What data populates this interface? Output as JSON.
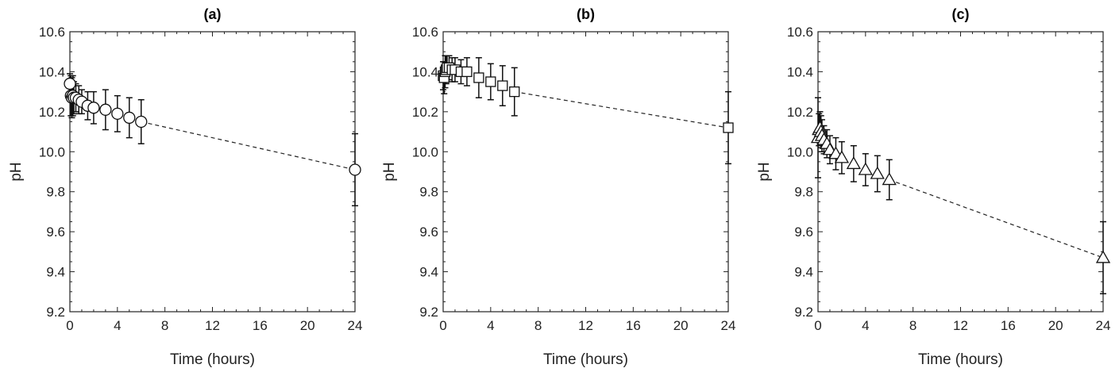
{
  "chart_data": [
    {
      "type": "scatter",
      "title": "(a)",
      "xlabel": "Time (hours)",
      "ylabel": "pH",
      "xlim": [
        0,
        24
      ],
      "ylim": [
        9.2,
        10.6
      ],
      "xticks": [
        "0",
        "4",
        "8",
        "12",
        "16",
        "20",
        "24"
      ],
      "yticks": [
        "9.2",
        "9.4",
        "9.6",
        "9.8",
        "10.0",
        "10.2",
        "10.4",
        "10.6"
      ],
      "marker": "circle",
      "grid": false,
      "x": [
        0,
        0.083,
        0.167,
        0.25,
        0.333,
        0.5,
        0.75,
        1,
        1.5,
        2,
        3,
        4,
        5,
        6,
        24
      ],
      "y": [
        10.34,
        10.28,
        10.27,
        10.28,
        10.27,
        10.27,
        10.26,
        10.25,
        10.23,
        10.22,
        10.21,
        10.19,
        10.17,
        10.15,
        9.91
      ],
      "error": [
        0.05,
        0.1,
        0.1,
        0.1,
        0.08,
        0.07,
        0.07,
        0.06,
        0.07,
        0.08,
        0.1,
        0.09,
        0.1,
        0.11,
        0.18
      ]
    },
    {
      "type": "scatter",
      "title": "(b)",
      "xlabel": "Time (hours)",
      "ylabel": "pH",
      "xlim": [
        0,
        24
      ],
      "ylim": [
        9.2,
        10.6
      ],
      "xticks": [
        "0",
        "4",
        "8",
        "12",
        "16",
        "20",
        "24"
      ],
      "yticks": [
        "9.2",
        "9.4",
        "9.6",
        "9.8",
        "10.0",
        "10.2",
        "10.4",
        "10.6"
      ],
      "marker": "square",
      "grid": false,
      "x": [
        0,
        0.083,
        0.167,
        0.25,
        0.333,
        0.5,
        0.75,
        1,
        1.5,
        2,
        3,
        4,
        5,
        6,
        24
      ],
      "y": [
        10.38,
        10.37,
        10.4,
        10.41,
        10.42,
        10.42,
        10.41,
        10.41,
        10.4,
        10.4,
        10.37,
        10.35,
        10.33,
        10.3,
        10.12
      ],
      "error": [
        0.07,
        0.08,
        0.08,
        0.07,
        0.06,
        0.06,
        0.06,
        0.06,
        0.06,
        0.07,
        0.1,
        0.09,
        0.1,
        0.12,
        0.18
      ]
    },
    {
      "type": "scatter",
      "title": "(c)",
      "xlabel": "Time (hours)",
      "ylabel": "pH",
      "xlim": [
        0,
        24
      ],
      "ylim": [
        9.2,
        10.6
      ],
      "xticks": [
        "0",
        "4",
        "8",
        "12",
        "16",
        "20",
        "24"
      ],
      "yticks": [
        "9.2",
        "9.4",
        "9.6",
        "9.8",
        "10.0",
        "10.2",
        "10.4",
        "10.6"
      ],
      "marker": "triangle",
      "grid": false,
      "x": [
        0,
        0.083,
        0.167,
        0.25,
        0.333,
        0.5,
        0.75,
        1,
        1.5,
        2,
        3,
        4,
        5,
        6,
        24
      ],
      "y": [
        10.07,
        10.11,
        10.12,
        10.1,
        10.08,
        10.06,
        10.04,
        10.01,
        9.99,
        9.97,
        9.94,
        9.91,
        9.89,
        9.86,
        9.47
      ],
      "error": [
        0.2,
        0.08,
        0.08,
        0.08,
        0.08,
        0.07,
        0.07,
        0.07,
        0.08,
        0.08,
        0.09,
        0.08,
        0.09,
        0.1,
        0.18
      ]
    }
  ]
}
